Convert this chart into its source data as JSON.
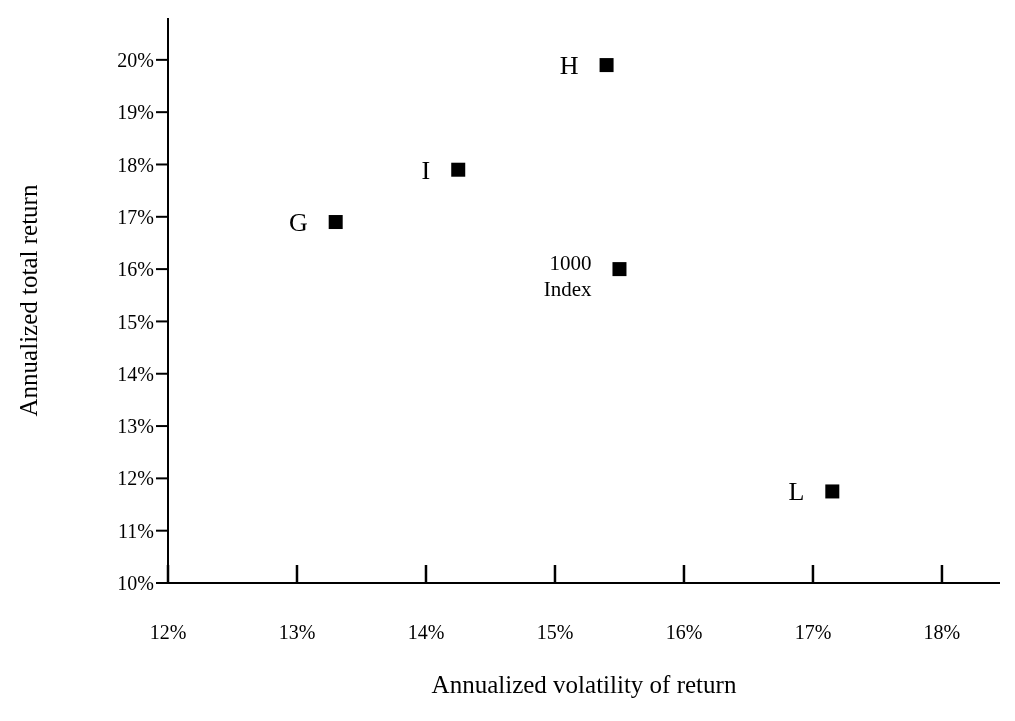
{
  "chart_data": {
    "type": "scatter",
    "xlabel": "Annualized volatility of return",
    "ylabel": "Annualized total return",
    "marker": "square",
    "legend": false,
    "grid": false,
    "series": [
      {
        "name": "H",
        "color": "#000000",
        "x": [
          15.4
        ],
        "values": [
          19.9
        ]
      },
      {
        "name": "I",
        "color": "#000000",
        "x": [
          14.25
        ],
        "values": [
          17.9
        ]
      },
      {
        "name": "G",
        "color": "#000000",
        "x": [
          13.3
        ],
        "values": [
          16.9
        ]
      },
      {
        "name": "1000 Index",
        "color": "#000000",
        "x": [
          15.5
        ],
        "values": [
          16.0
        ]
      },
      {
        "name": "L",
        "color": "#000000",
        "x": [
          17.15
        ],
        "values": [
          11.75
        ]
      }
    ],
    "xlim": [
      12,
      18.45
    ],
    "ylim": [
      10,
      20.8
    ],
    "xticks": [
      {
        "value": 12,
        "label": "12%"
      },
      {
        "value": 13,
        "label": "13%"
      },
      {
        "value": 14,
        "label": "14%"
      },
      {
        "value": 15,
        "label": "15%"
      },
      {
        "value": 16,
        "label": "16%"
      },
      {
        "value": 17,
        "label": "17%"
      },
      {
        "value": 18,
        "label": "18%"
      }
    ],
    "yticks": [
      {
        "value": 10,
        "label": "10%"
      },
      {
        "value": 11,
        "label": "11%"
      },
      {
        "value": 12,
        "label": "12%"
      },
      {
        "value": 13,
        "label": "13%"
      },
      {
        "value": 14,
        "label": "14%"
      },
      {
        "value": 15,
        "label": "15%"
      },
      {
        "value": 16,
        "label": "16%"
      },
      {
        "value": 17,
        "label": "17%"
      },
      {
        "value": 18,
        "label": "18%"
      },
      {
        "value": 19,
        "label": "19%"
      },
      {
        "value": 20,
        "label": "20%"
      }
    ]
  }
}
